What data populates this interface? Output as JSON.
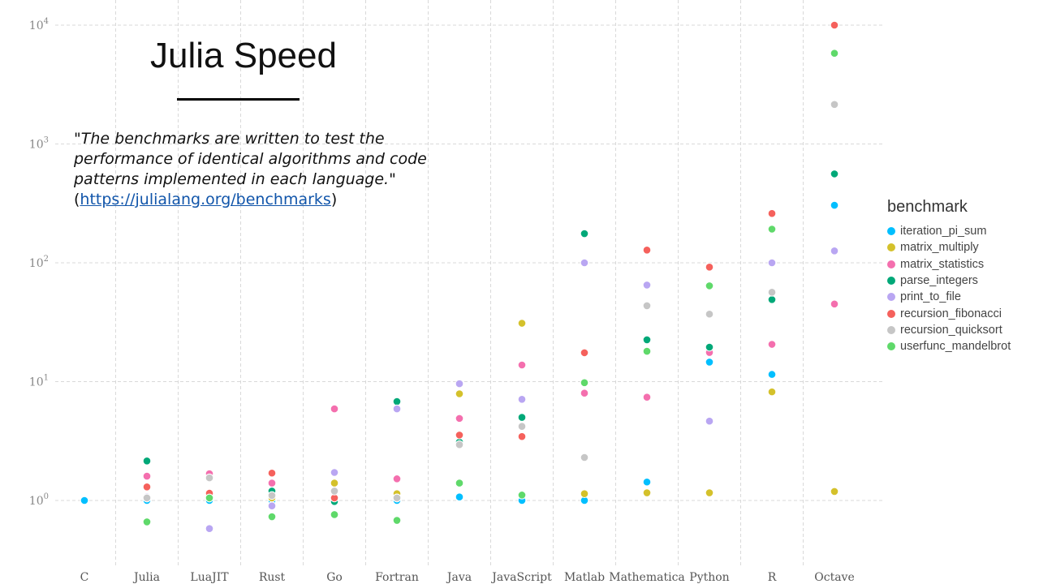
{
  "slide": {
    "title": "Julia Speed",
    "quote_open": "\"",
    "quote_text": "The benchmarks are written to test the performance of identical algorithms and code patterns implemented in each language.",
    "quote_close": "\"(",
    "quote_link": "https://julialang.org/benchmarks",
    "quote_end": ")"
  },
  "chart_data": {
    "type": "scatter",
    "y_scale": "log10",
    "ylim": [
      0.5,
      10000
    ],
    "y_ticks": [
      {
        "value": 1,
        "base": "10",
        "exp": "0"
      },
      {
        "value": 10,
        "base": "10",
        "exp": "1"
      },
      {
        "value": 100,
        "base": "10",
        "exp": "2"
      },
      {
        "value": 1000,
        "base": "10",
        "exp": "3"
      },
      {
        "value": 10000,
        "base": "10",
        "exp": "4"
      }
    ],
    "categories": [
      "C",
      "Julia",
      "LuaJIT",
      "Rust",
      "Go",
      "Fortran",
      "Java",
      "JavaScript",
      "Matlab",
      "Mathematica",
      "Python",
      "R",
      "Octave"
    ],
    "legend_title": "benchmark",
    "legend_position": "right",
    "grid": true,
    "series": [
      {
        "name": "iteration_pi_sum",
        "color": "#00bfff",
        "values": [
          1,
          1.0,
          1.0,
          1.0,
          1.0,
          1.0,
          1.07,
          1.0,
          1.0,
          1.43,
          14.6,
          11.5,
          305
        ]
      },
      {
        "name": "matrix_multiply",
        "color": "#d4c12b",
        "values": [
          null,
          1.05,
          1.05,
          1.05,
          1.4,
          1.14,
          7.9,
          31,
          1.14,
          1.16,
          1.16,
          8.2,
          1.19
        ]
      },
      {
        "name": "matrix_statistics",
        "color": "#f46fae",
        "values": [
          null,
          1.6,
          1.68,
          1.4,
          5.9,
          1.52,
          4.9,
          13.8,
          8.0,
          7.4,
          17.6,
          20.6,
          45
        ]
      },
      {
        "name": "parse_integers",
        "color": "#00a878",
        "values": [
          null,
          2.15,
          1.1,
          1.2,
          0.98,
          6.8,
          3.1,
          5.0,
          176,
          22.5,
          19.5,
          49,
          560
        ]
      },
      {
        "name": "print_to_file",
        "color": "#b9a6f2",
        "values": [
          null,
          1.07,
          0.58,
          0.9,
          1.72,
          5.9,
          9.6,
          7.1,
          100,
          65,
          4.65,
          100,
          126
        ]
      },
      {
        "name": "recursion_fibonacci",
        "color": "#f5615c",
        "values": [
          null,
          1.3,
          1.15,
          1.7,
          1.05,
          1.05,
          3.55,
          3.45,
          17.5,
          128,
          92,
          260,
          10000
        ]
      },
      {
        "name": "recursion_quicksort",
        "color": "#c6c6c6",
        "values": [
          null,
          1.05,
          1.55,
          1.1,
          1.2,
          1.05,
          2.95,
          4.2,
          2.3,
          43.5,
          37,
          56.5,
          2150
        ]
      },
      {
        "name": "userfunc_mandelbrot",
        "color": "#5fd96a",
        "values": [
          null,
          0.66,
          1.05,
          0.73,
          0.76,
          0.68,
          1.4,
          1.11,
          9.8,
          18,
          64,
          192,
          5800
        ]
      }
    ]
  }
}
